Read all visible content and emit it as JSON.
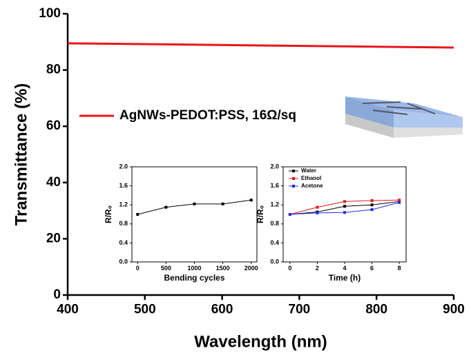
{
  "chart_data": [
    {
      "type": "line",
      "xlabel": "Wavelength (nm)",
      "ylabel": "Transmittance (%)",
      "xlim": [
        400,
        900
      ],
      "ylim": [
        0,
        100
      ],
      "xticks": [
        400,
        500,
        600,
        700,
        800,
        900
      ],
      "yticks": [
        0,
        20,
        40,
        60,
        80,
        100
      ],
      "x": [
        400,
        900
      ],
      "series": [
        {
          "name": "AgNWs-PEDOT:PSS, 16Ω/sq",
          "color": "#e8141b",
          "values": [
            89.5,
            88
          ]
        }
      ]
    },
    {
      "type": "line",
      "xlabel": "Bending cycles",
      "ylabel": "R/R₀",
      "xlim": [
        -100,
        2100
      ],
      "ylim": [
        0,
        2
      ],
      "xticks": [
        0,
        500,
        1000,
        1500,
        2000
      ],
      "yticks": [
        {
          "value": 0,
          "label": "0.0"
        },
        {
          "value": 0.4,
          "label": "0.4"
        },
        {
          "value": 0.8,
          "label": "0.8"
        },
        {
          "value": 1.2,
          "label": "1.2"
        },
        {
          "value": 1.6,
          "label": "1.6"
        },
        {
          "value": 2,
          "label": "2.0"
        }
      ],
      "x": [
        0,
        500,
        1000,
        1500,
        2000
      ],
      "series": [
        {
          "color": "#000000",
          "values": [
            1.0,
            1.15,
            1.22,
            1.22,
            1.3
          ]
        }
      ]
    },
    {
      "type": "line",
      "xlabel": "Time (h)",
      "ylabel": "R/R₀",
      "xlim": [
        -0.5,
        8.5
      ],
      "ylim": [
        0,
        2
      ],
      "xticks": [
        0,
        2,
        4,
        6,
        8
      ],
      "yticks": [
        {
          "value": 0,
          "label": "0.0"
        },
        {
          "value": 0.4,
          "label": "0.4"
        },
        {
          "value": 0.8,
          "label": "0.8"
        },
        {
          "value": 1.2,
          "label": "1.2"
        },
        {
          "value": 1.6,
          "label": "1.6"
        },
        {
          "value": 2,
          "label": "2.0"
        }
      ],
      "x": [
        0,
        2,
        4,
        6,
        8
      ],
      "series": [
        {
          "name": "Water",
          "color": "#000000",
          "values": [
            1.0,
            1.05,
            1.17,
            1.2,
            1.27
          ]
        },
        {
          "name": "Ethanol",
          "color": "#e8141b",
          "values": [
            1.0,
            1.15,
            1.27,
            1.29,
            1.3
          ]
        },
        {
          "name": "Acetone",
          "color": "#1a2ee0",
          "values": [
            1.0,
            1.03,
            1.04,
            1.1,
            1.25
          ]
        }
      ]
    }
  ]
}
